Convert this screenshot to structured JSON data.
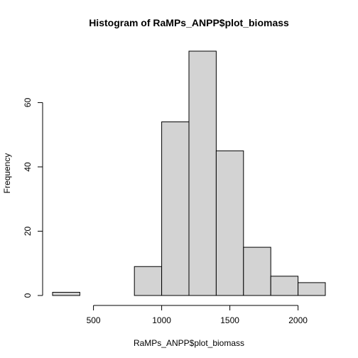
{
  "chart_data": {
    "type": "bar",
    "title": "Histogram of RaMPs_ANPP$plot_biomass",
    "xlabel": "RaMPs_ANPP$plot_biomass",
    "ylabel": "Frequency",
    "bin_edges": [
      200,
      400,
      600,
      800,
      1000,
      1200,
      1400,
      1600,
      1800,
      2000,
      2200
    ],
    "values": [
      1,
      0,
      0,
      9,
      54,
      76,
      45,
      15,
      6,
      4
    ],
    "xlim": [
      200,
      2200
    ],
    "ylim": [
      0,
      76
    ],
    "x_ticks": [
      500,
      1000,
      1500,
      2000
    ],
    "y_ticks": [
      0,
      20,
      40,
      60
    ],
    "bar_fill": "#d3d3d3",
    "bar_stroke": "#000000",
    "grid": false,
    "legend": "none"
  }
}
